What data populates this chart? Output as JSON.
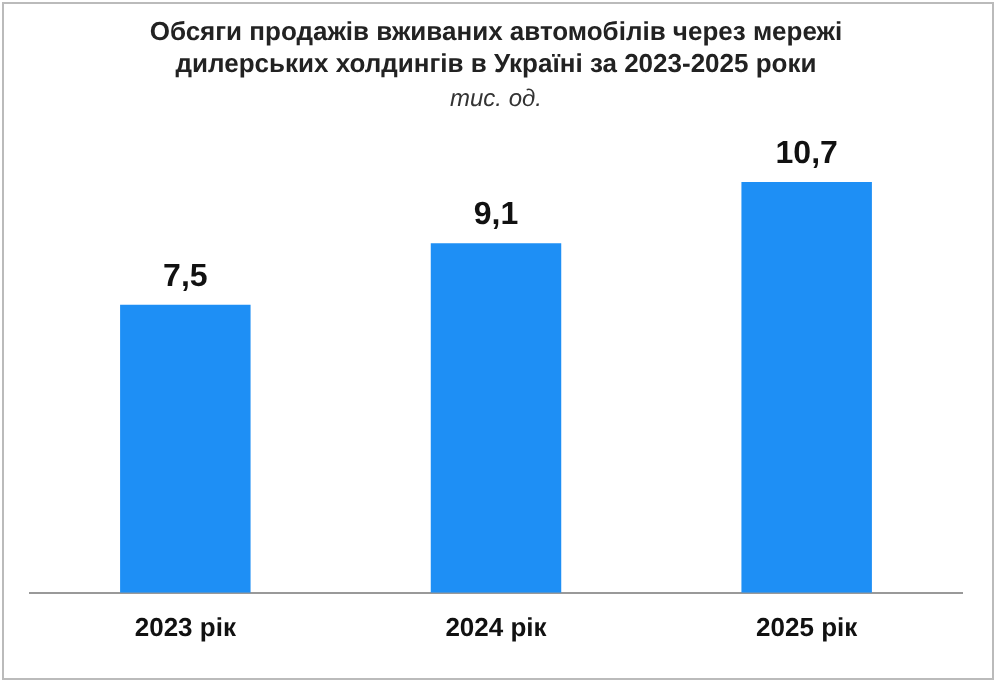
{
  "chart_data": {
    "type": "bar",
    "title": "Обсяги продажів вживаних автомобілів через мережі дилерських холдингів в Україні за 2023-2025  роки",
    "subtitle": "тис. од.",
    "categories": [
      "2023 рік",
      "2024 рік",
      "2025 рік"
    ],
    "values": [
      7.5,
      9.1,
      10.7
    ],
    "value_labels": [
      "7,5",
      "9,1",
      "10,7"
    ],
    "color": "#1e8ff5",
    "legend": false,
    "grid": false
  }
}
